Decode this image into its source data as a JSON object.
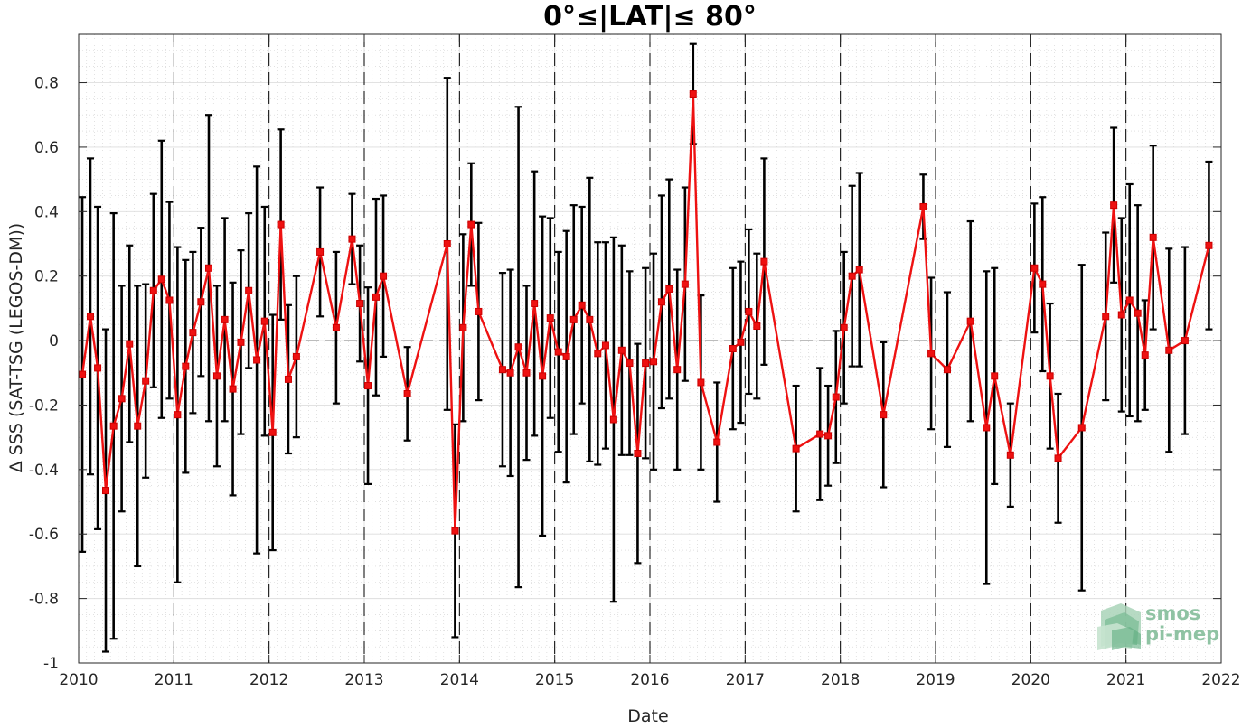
{
  "chart_data": {
    "type": "line",
    "title": "0°≤|LAT|≤ 80°",
    "xlabel": "Date",
    "ylabel": "Δ SSS (SAT-TSG (LEGOS-DM))",
    "xlim": [
      "2010-01-01",
      "2022-01-01"
    ],
    "ylim": [
      -1.0,
      0.95
    ],
    "xticks": [
      "2010",
      "2011",
      "2012",
      "2013",
      "2014",
      "2015",
      "2016",
      "2017",
      "2018",
      "2019",
      "2020",
      "2021",
      "2022"
    ],
    "yticks": [
      "-1",
      "-0.8",
      "-0.6",
      "-0.4",
      "-0.2",
      "0",
      "0.2",
      "0.4",
      "0.6",
      "0.8"
    ],
    "grid": true,
    "zero_reference_line": 0,
    "year_boundary_lines": [
      "2011-01-01",
      "2012-01-01",
      "2013-01-01",
      "2014-01-01",
      "2015-01-01",
      "2016-01-01",
      "2017-01-01",
      "2018-01-01",
      "2019-01-01",
      "2020-01-01",
      "2021-01-01"
    ],
    "line_color": "#ee1111",
    "errorbar_color": "#000000",
    "series": [
      {
        "x": [
          "2010-01-15",
          "2010-02-15",
          "2010-03-15",
          "2010-04-15",
          "2010-05-15",
          "2010-06-15",
          "2010-07-15",
          "2010-08-15",
          "2010-09-15",
          "2010-10-15",
          "2010-11-15",
          "2010-12-15",
          "2011-01-15",
          "2011-02-15",
          "2011-03-15",
          "2011-04-15",
          "2011-05-15",
          "2011-06-15",
          "2011-07-15",
          "2011-08-15",
          "2011-09-15",
          "2011-10-15",
          "2011-11-15",
          "2011-12-15",
          "2012-01-15",
          "2012-02-15",
          "2012-03-15",
          "2012-04-15",
          "2012-07-15",
          "2012-09-15",
          "2012-11-15",
          "2012-12-15",
          "2013-01-15",
          "2013-02-15",
          "2013-03-15",
          "2013-06-15",
          "2013-11-15",
          "2013-12-15",
          "2014-01-15",
          "2014-02-15",
          "2014-03-15",
          "2014-06-15",
          "2014-07-15",
          "2014-08-15",
          "2014-09-15",
          "2014-10-15",
          "2014-11-15",
          "2014-12-15",
          "2015-01-15",
          "2015-02-15",
          "2015-03-15",
          "2015-04-15",
          "2015-05-15",
          "2015-06-15",
          "2015-07-15",
          "2015-08-15",
          "2015-09-15",
          "2015-10-15",
          "2015-11-15",
          "2015-12-15",
          "2016-01-15",
          "2016-02-15",
          "2016-03-15",
          "2016-04-15",
          "2016-05-15",
          "2016-06-15",
          "2016-07-15",
          "2016-09-15",
          "2016-11-15",
          "2016-12-15",
          "2017-01-15",
          "2017-02-15",
          "2017-03-15",
          "2017-07-15",
          "2017-10-15",
          "2017-11-15",
          "2017-12-15",
          "2018-01-15",
          "2018-02-15",
          "2018-03-15",
          "2018-06-15",
          "2018-11-15",
          "2018-12-15",
          "2019-02-15",
          "2019-05-15",
          "2019-07-15",
          "2019-08-15",
          "2019-10-15",
          "2020-01-15",
          "2020-02-15",
          "2020-03-15",
          "2020-04-15",
          "2020-07-15",
          "2020-10-15",
          "2020-11-15",
          "2020-12-15",
          "2021-01-15",
          "2021-02-15",
          "2021-03-15",
          "2021-04-15",
          "2021-06-15",
          "2021-08-15",
          "2021-11-15"
        ],
        "y": [
          -0.105,
          0.075,
          -0.085,
          -0.465,
          -0.265,
          -0.18,
          -0.01,
          -0.265,
          -0.125,
          0.155,
          0.19,
          0.125,
          -0.23,
          -0.08,
          0.025,
          0.12,
          0.225,
          -0.11,
          0.065,
          -0.15,
          -0.005,
          0.155,
          -0.06,
          0.06,
          -0.285,
          0.36,
          -0.12,
          -0.05,
          0.275,
          0.04,
          0.315,
          0.115,
          -0.14,
          0.135,
          0.2,
          -0.165,
          0.3,
          -0.59,
          0.04,
          0.36,
          0.09,
          -0.09,
          -0.1,
          -0.02,
          -0.1,
          0.115,
          -0.11,
          0.07,
          -0.035,
          -0.05,
          0.065,
          0.11,
          0.065,
          -0.04,
          -0.015,
          -0.245,
          -0.03,
          -0.07,
          -0.35,
          -0.07,
          -0.065,
          0.12,
          0.16,
          -0.09,
          0.175,
          0.765,
          -0.13,
          -0.315,
          -0.025,
          -0.005,
          0.09,
          0.045,
          0.245,
          -0.335,
          -0.29,
          -0.295,
          -0.175,
          0.04,
          0.2,
          0.22,
          -0.23,
          0.415,
          -0.04,
          -0.09,
          0.06,
          -0.27,
          -0.11,
          -0.355,
          0.225,
          0.175,
          -0.11,
          -0.365,
          -0.27,
          0.075,
          0.42,
          0.08,
          0.125,
          0.085,
          -0.045,
          0.32,
          -0.03,
          0.0,
          0.295
        ],
        "err": [
          0.55,
          0.49,
          0.5,
          0.5,
          0.66,
          0.35,
          0.305,
          0.435,
          0.3,
          0.3,
          0.43,
          0.305,
          0.52,
          0.33,
          0.25,
          0.23,
          0.475,
          0.28,
          0.315,
          0.33,
          0.285,
          0.24,
          0.6,
          0.355,
          0.365,
          0.295,
          0.23,
          0.25,
          0.2,
          0.235,
          0.14,
          0.18,
          0.305,
          0.305,
          0.25,
          0.145,
          0.515,
          0.33,
          0.29,
          0.19,
          0.275,
          0.3,
          0.32,
          0.745,
          0.27,
          0.41,
          0.495,
          0.31,
          0.31,
          0.39,
          0.355,
          0.305,
          0.44,
          0.345,
          0.32,
          0.565,
          0.325,
          0.285,
          0.34,
          0.295,
          0.335,
          0.33,
          0.34,
          0.31,
          0.3,
          0.155,
          0.27,
          0.185,
          0.25,
          0.25,
          0.255,
          0.225,
          0.32,
          0.195,
          0.205,
          0.155,
          0.205,
          0.235,
          0.28,
          0.3,
          0.225,
          0.1,
          0.235,
          0.24,
          0.31,
          0.485,
          0.335,
          0.16,
          0.2,
          0.27,
          0.225,
          0.2,
          0.505,
          0.26,
          0.24,
          0.3,
          0.36,
          0.335,
          0.17,
          0.285,
          0.315,
          0.29,
          0.26
        ]
      }
    ]
  },
  "logo": {
    "line1": "smos",
    "line2": "pi-mep",
    "color": "#8fc3a3"
  }
}
